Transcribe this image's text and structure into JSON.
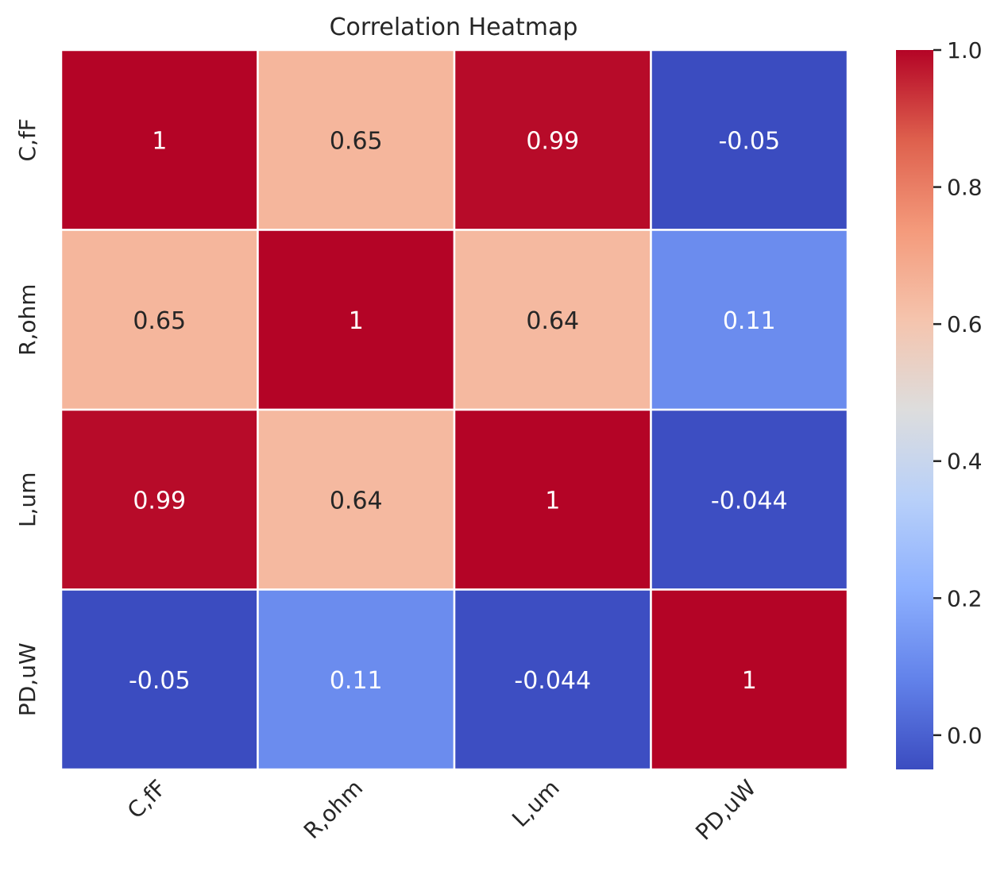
{
  "chart_data": {
    "type": "heatmap",
    "title": "Correlation Heatmap",
    "x_labels": [
      "C,fF",
      "R,ohm",
      "L,um",
      "PD,uW"
    ],
    "y_labels": [
      "C,fF",
      "R,ohm",
      "L,um",
      "PD,uW"
    ],
    "values": [
      [
        1,
        0.65,
        0.99,
        -0.05
      ],
      [
        0.65,
        1,
        0.64,
        0.11
      ],
      [
        0.99,
        0.64,
        1,
        -0.044
      ],
      [
        -0.05,
        0.11,
        -0.044,
        1
      ]
    ],
    "cell_labels": [
      [
        "1",
        "0.65",
        "0.99",
        "-0.05"
      ],
      [
        "0.65",
        "1",
        "0.64",
        "0.11"
      ],
      [
        "0.99",
        "0.64",
        "1",
        "-0.044"
      ],
      [
        "-0.05",
        "0.11",
        "-0.044",
        "1"
      ]
    ],
    "colormap": "coolwarm",
    "vmin": -0.05,
    "vmax": 1.0,
    "colorbar_ticks": [
      0.0,
      0.2,
      0.4,
      0.6,
      0.8,
      1.0
    ],
    "colorbar_tick_labels": [
      "0.0",
      "0.2",
      "0.4",
      "0.6",
      "0.8",
      "1.0"
    ],
    "colors": {
      "cell_border": "#ffffff",
      "text_light": "#ffffff",
      "text_dark": "#262626",
      "axis_text": "#262626"
    }
  }
}
